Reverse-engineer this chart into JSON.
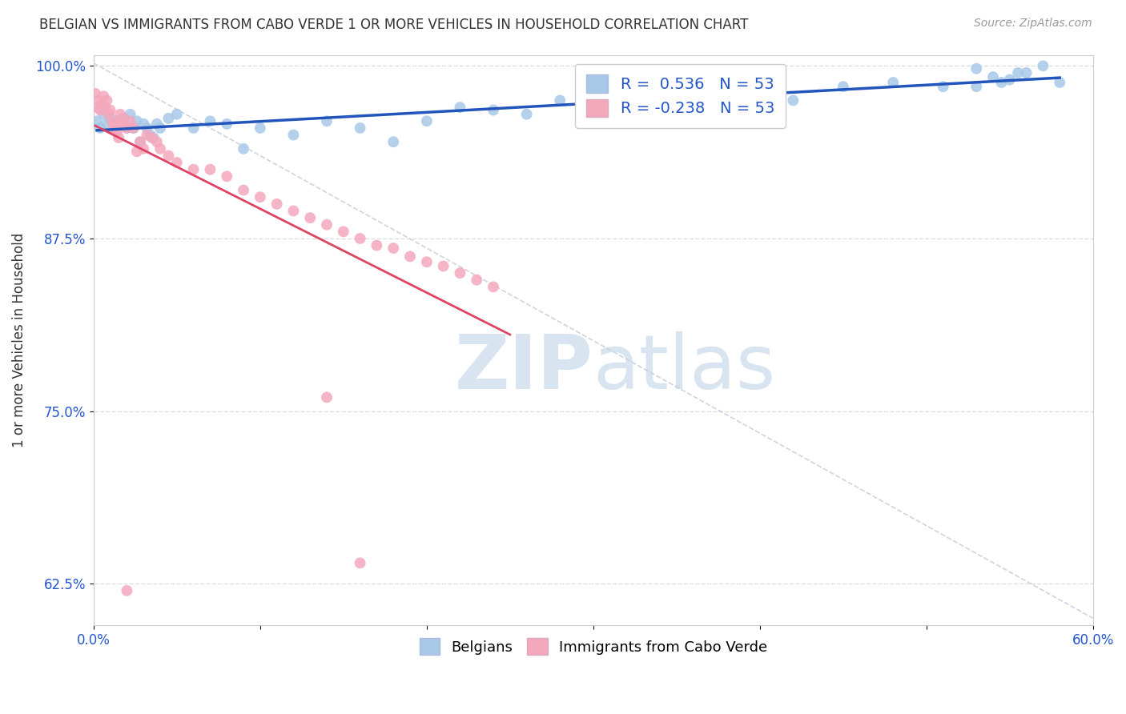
{
  "title": "BELGIAN VS IMMIGRANTS FROM CABO VERDE 1 OR MORE VEHICLES IN HOUSEHOLD CORRELATION CHART",
  "source": "Source: ZipAtlas.com",
  "ylabel": "1 or more Vehicles in Household",
  "xlim": [
    0.0,
    0.6
  ],
  "ylim": [
    0.595,
    1.008
  ],
  "yticks": [
    0.625,
    0.75,
    0.875,
    1.0
  ],
  "ytick_labels": [
    "62.5%",
    "75.0%",
    "87.5%",
    "100.0%"
  ],
  "xticks": [
    0.0,
    0.1,
    0.2,
    0.3,
    0.4,
    0.5,
    0.6
  ],
  "xtick_labels": [
    "0.0%",
    "",
    "",
    "",
    "",
    "",
    "60.0%"
  ],
  "blue_color": "#A8C8E8",
  "pink_color": "#F4A8BC",
  "trend_blue": "#2255BB",
  "trend_pink": "#DD4466",
  "diag_color": "#C8D0DC",
  "legend_r_blue": "0.536",
  "legend_r_pink": "-0.238",
  "legend_n": "53",
  "blue_x": [
    0.002,
    0.004,
    0.006,
    0.008,
    0.01,
    0.012,
    0.014,
    0.016,
    0.018,
    0.02,
    0.022,
    0.024,
    0.026,
    0.028,
    0.03,
    0.032,
    0.034,
    0.036,
    0.038,
    0.04,
    0.045,
    0.05,
    0.06,
    0.07,
    0.08,
    0.09,
    0.1,
    0.12,
    0.14,
    0.16,
    0.18,
    0.2,
    0.22,
    0.24,
    0.26,
    0.28,
    0.3,
    0.33,
    0.36,
    0.39,
    0.42,
    0.45,
    0.48,
    0.51,
    0.53,
    0.55,
    0.56,
    0.57,
    0.58,
    0.53,
    0.54,
    0.555,
    0.545
  ],
  "blue_y": [
    0.96,
    0.955,
    0.965,
    0.958,
    0.962,
    0.955,
    0.96,
    0.958,
    0.962,
    0.955,
    0.965,
    0.955,
    0.96,
    0.945,
    0.958,
    0.955,
    0.95,
    0.948,
    0.958,
    0.955,
    0.962,
    0.965,
    0.955,
    0.96,
    0.958,
    0.94,
    0.955,
    0.95,
    0.96,
    0.955,
    0.945,
    0.96,
    0.97,
    0.968,
    0.965,
    0.975,
    0.968,
    0.975,
    0.972,
    0.978,
    0.975,
    0.985,
    0.988,
    0.985,
    0.985,
    0.99,
    0.995,
    1.0,
    0.988,
    0.998,
    0.992,
    0.995,
    0.988
  ],
  "pink_x": [
    0.001,
    0.002,
    0.003,
    0.004,
    0.005,
    0.006,
    0.007,
    0.008,
    0.009,
    0.01,
    0.011,
    0.012,
    0.013,
    0.014,
    0.015,
    0.016,
    0.017,
    0.018,
    0.019,
    0.02,
    0.022,
    0.024,
    0.026,
    0.028,
    0.03,
    0.032,
    0.035,
    0.038,
    0.04,
    0.045,
    0.05,
    0.06,
    0.07,
    0.08,
    0.09,
    0.1,
    0.11,
    0.12,
    0.13,
    0.14,
    0.15,
    0.16,
    0.17,
    0.18,
    0.19,
    0.2,
    0.21,
    0.22,
    0.23,
    0.24,
    0.14,
    0.16,
    0.02
  ],
  "pink_y": [
    0.98,
    0.97,
    0.975,
    0.968,
    0.972,
    0.978,
    0.97,
    0.975,
    0.965,
    0.968,
    0.96,
    0.955,
    0.958,
    0.952,
    0.948,
    0.965,
    0.96,
    0.962,
    0.958,
    0.955,
    0.96,
    0.955,
    0.938,
    0.945,
    0.94,
    0.95,
    0.948,
    0.945,
    0.94,
    0.935,
    0.93,
    0.925,
    0.925,
    0.92,
    0.91,
    0.905,
    0.9,
    0.895,
    0.89,
    0.885,
    0.88,
    0.875,
    0.87,
    0.868,
    0.862,
    0.858,
    0.855,
    0.85,
    0.845,
    0.84,
    0.76,
    0.64,
    0.62
  ],
  "background_color": "#FFFFFF",
  "grid_color": "#DDDDDD",
  "axis_color": "#CCCCCC",
  "title_color": "#333333",
  "source_color": "#999999",
  "tick_color": "#2255CC",
  "watermark_color": "#D8E4F0"
}
